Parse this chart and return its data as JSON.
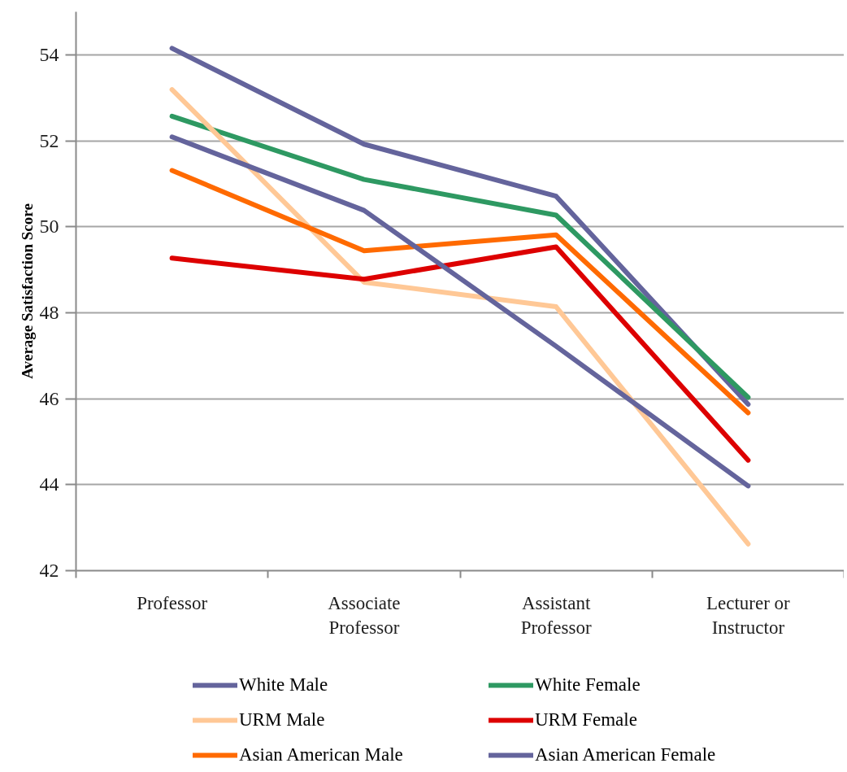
{
  "chart_data": {
    "type": "line",
    "ylabel": "Average Satisfaction Score",
    "categories": [
      "Professor",
      "Associate Professor",
      "Assistant Professor",
      "Lecturer or Instructor"
    ],
    "series": [
      {
        "name": "White Male",
        "color": "#64649c",
        "values": [
          54.15,
          51.92,
          50.71,
          45.87
        ]
      },
      {
        "name": "White Female",
        "color": "#2e9962",
        "values": [
          52.57,
          51.1,
          50.27,
          46.03
        ]
      },
      {
        "name": "URM Male",
        "color": "#ffc896",
        "values": [
          53.19,
          48.71,
          48.14,
          42.62
        ]
      },
      {
        "name": "URM Female",
        "color": "#dd0000",
        "values": [
          49.27,
          48.78,
          49.53,
          44.57
        ]
      },
      {
        "name": "Asian American Male",
        "color": "#ff6a00",
        "values": [
          51.31,
          49.44,
          49.81,
          45.67
        ]
      },
      {
        "name": "Asian American Female",
        "color": "#64649c",
        "values": [
          52.09,
          50.38,
          47.22,
          43.97
        ]
      }
    ],
    "ylim": [
      42,
      55
    ],
    "yticks": [
      42,
      44,
      46,
      48,
      50,
      52,
      54
    ],
    "grid": "y",
    "legend": "bottom",
    "line_style": "solid"
  }
}
